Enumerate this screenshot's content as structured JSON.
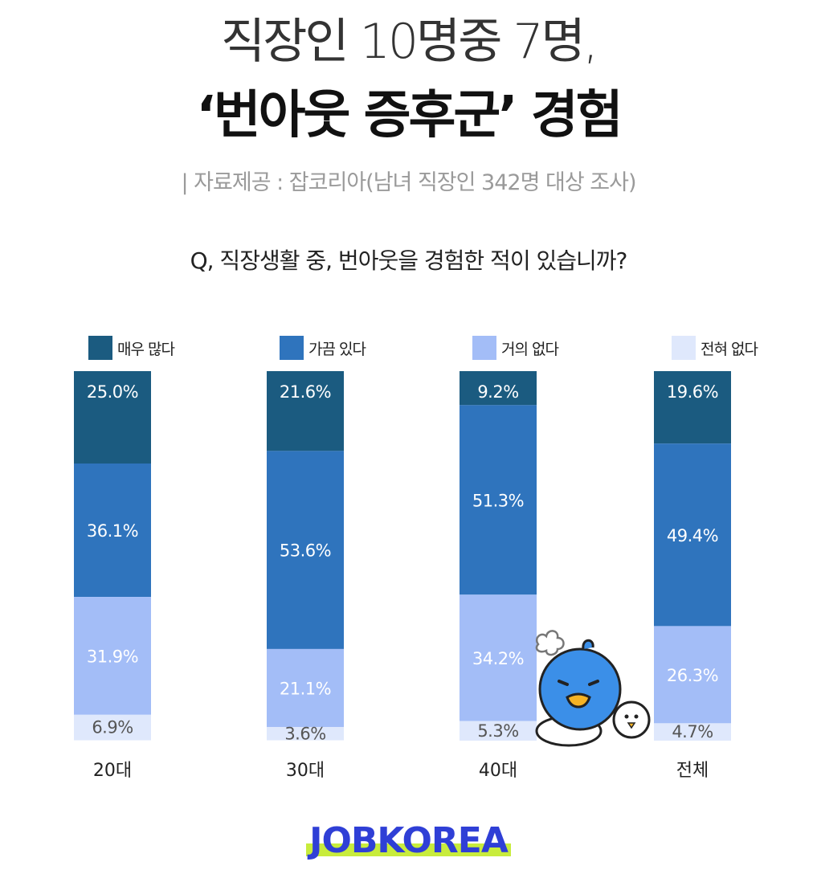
{
  "header": {
    "title_line1": "직장인 10명중 7명,",
    "title_line2": "‘번아웃 증후군’ 경험",
    "source": "| 자료제공 : 잡코리아(남녀 직장인 342명 대상 조사)",
    "question": "Q, 직장생활 중, 번아웃을 경험한 적이 있습니까?"
  },
  "chart_data": {
    "type": "bar",
    "stacked": true,
    "categories": [
      "20대",
      "30대",
      "40대",
      "전체"
    ],
    "series": [
      {
        "name": "매우 많다",
        "color": "#1b5b80",
        "values": [
          25.0,
          21.6,
          9.2,
          19.6
        ],
        "labels": [
          "25.0%",
          "21.6%",
          "9.2%",
          "19.6%"
        ]
      },
      {
        "name": "가끔 있다",
        "color": "#2f74bd",
        "values": [
          36.1,
          53.6,
          51.3,
          49.4
        ],
        "labels": [
          "36.1%",
          "53.6%",
          "51.3%",
          "49.4%"
        ]
      },
      {
        "name": "거의 없다",
        "color": "#a3bdf7",
        "values": [
          31.9,
          21.1,
          34.2,
          26.3
        ],
        "labels": [
          "31.9%",
          "21.1%",
          "34.2%",
          "26.3%"
        ]
      },
      {
        "name": "전혀 없다",
        "color": "#dfe8fc",
        "values": [
          6.9,
          3.6,
          5.3,
          4.7
        ],
        "labels": [
          "6.9%",
          "3.6%",
          "5.3%",
          "4.7%"
        ]
      }
    ],
    "ylim": [
      0,
      100
    ],
    "legend_position": "top"
  },
  "footer": {
    "logo": "JOBKOREA",
    "logo_color": "#2f3fd6",
    "logo_highlight": "#c8ec3c"
  },
  "mascot": {
    "icon": "blue-bird-mascot-icon",
    "color": "#3b8fe8"
  }
}
